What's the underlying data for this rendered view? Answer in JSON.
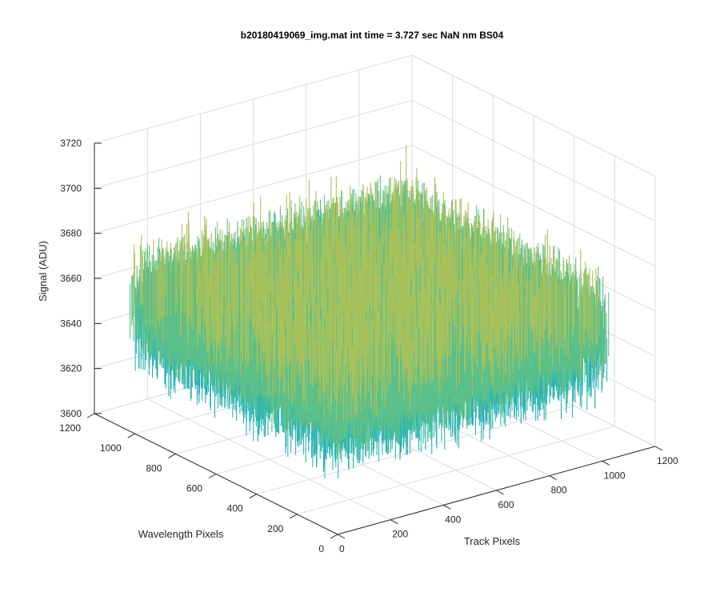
{
  "chart_data": {
    "type": "surface",
    "title": "b20180419069_img.mat int time = 3.727 sec  NaN nm BS04",
    "xlabel": "Track Pixels",
    "ylabel": "Wavelength Pixels",
    "zlabel": "Signal (ADU)",
    "xlim": [
      0,
      1200
    ],
    "ylim": [
      0,
      1200
    ],
    "zlim": [
      3600,
      3720
    ],
    "xticks": [
      "0",
      "200",
      "400",
      "600",
      "800",
      "1000",
      "1200"
    ],
    "yticks": [
      "0",
      "200",
      "400",
      "600",
      "800",
      "1000",
      "1200"
    ],
    "zticks": [
      "3600",
      "3620",
      "3640",
      "3660",
      "3680",
      "3700",
      "3720"
    ],
    "data_extent": {
      "x": [
        0,
        1024
      ],
      "y": [
        0,
        1024
      ]
    },
    "signal_mean": 3655,
    "signal_range": [
      3615,
      3700
    ],
    "grid": true,
    "view": "3d-azimuth-37.5-elevation-30",
    "colormap": [
      "#0072bd",
      "#1a9ec8",
      "#2cb5b5",
      "#5cc089",
      "#a9c15b",
      "#e3b540",
      "#f0c13a"
    ]
  }
}
